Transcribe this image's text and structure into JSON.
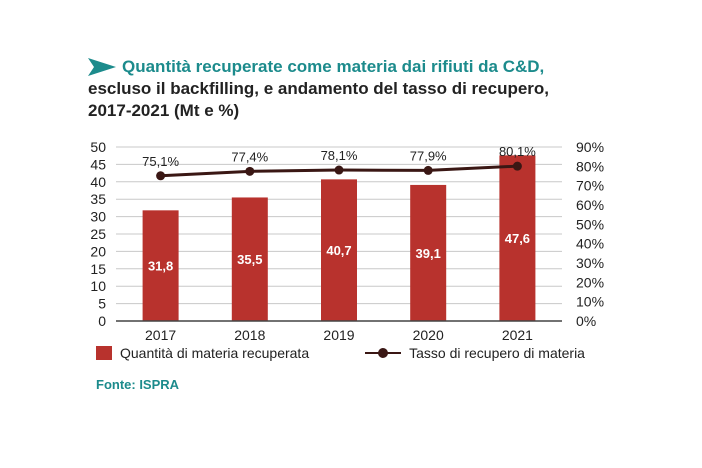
{
  "title": {
    "line1": "Quantità recuperate come materia dai rifiuti da C&D,",
    "line2": "escluso il backfilling, e andamento del tasso di recupero,",
    "line3": "2017-2021 (Mt e %)"
  },
  "colors": {
    "accent": "#1c8b8c",
    "bar": "#b8322d",
    "line": "#3a1714",
    "grid": "#c8c8c8"
  },
  "chart_data": {
    "type": "bar",
    "categories": [
      "2017",
      "2018",
      "2019",
      "2020",
      "2021"
    ],
    "series": [
      {
        "name": "Quantità di materia recuperata",
        "type": "bar",
        "axis": "left",
        "values": [
          31.8,
          35.5,
          40.7,
          39.1,
          47.6
        ],
        "labels": [
          "31,8",
          "35,5",
          "40,7",
          "39,1",
          "47,6"
        ]
      },
      {
        "name": "Tasso di recupero di materia",
        "type": "line",
        "axis": "right",
        "values": [
          75.1,
          77.4,
          78.1,
          77.9,
          80.1
        ],
        "labels": [
          "75,1%",
          "77,4%",
          "78,1%",
          "77,9%",
          "80,1%"
        ]
      }
    ],
    "y_left": {
      "min": 0,
      "max": 50,
      "ticks": [
        "0",
        "5",
        "10",
        "15",
        "20",
        "25",
        "30",
        "35",
        "40",
        "45",
        "50"
      ]
    },
    "y_right": {
      "min": 0,
      "max": 90,
      "ticks": [
        "0%",
        "10%",
        "20%",
        "30%",
        "40%",
        "50%",
        "60%",
        "70%",
        "80%",
        "90%"
      ]
    },
    "grid": true,
    "legend_position": "bottom"
  },
  "source": "Fonte: ISPRA"
}
